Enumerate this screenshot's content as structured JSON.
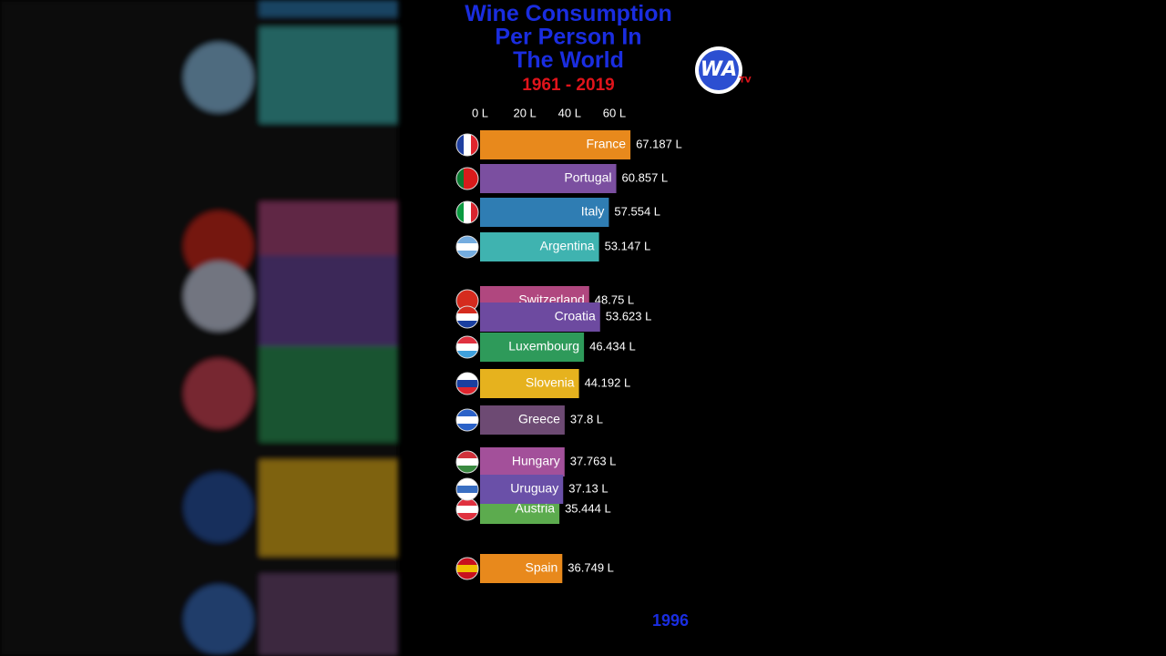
{
  "chart_data": {
    "type": "bar",
    "orientation": "horizontal",
    "title": "Wine Consumption Per Person In The World",
    "subtitle": "1961 - 2019",
    "annotation": "1996",
    "categories": [
      "France",
      "Portugal",
      "Italy",
      "Argentina",
      "Switzerland",
      "Croatia",
      "Luxembourg",
      "Slovenia",
      "Greece",
      "Hungary",
      "Austria",
      "Uruguay",
      "Spain"
    ],
    "values": [
      67.187,
      60.857,
      57.554,
      53.147,
      48.75,
      53.623,
      46.434,
      44.192,
      37.8,
      37.763,
      35.444,
      37.13,
      36.749
    ],
    "value_labels": [
      "67.187 L",
      "60.857 L",
      "57.554 L",
      "53.147 L",
      "48.75 L",
      "53.623 L",
      "46.434 L",
      "44.192 L",
      "37.8 L",
      "37.763 L",
      "35.444 L",
      "37.13 L",
      "36.749 L"
    ],
    "colors": [
      "#e8891c",
      "#7b4fa0",
      "#2f7db3",
      "#3fb3b0",
      "#b0477f",
      "#6d4aa0",
      "#2e9a5a",
      "#e6b21e",
      "#6d4a73",
      "#a3509a",
      "#5cab4e",
      "#6a50a8",
      "#e8891c"
    ],
    "xlim": [
      0,
      70
    ],
    "xticks": [
      {
        "value": 0,
        "label": "0 L"
      },
      {
        "value": 20,
        "label": "20 L"
      },
      {
        "value": 40,
        "label": "40 L"
      },
      {
        "value": 60,
        "label": "60 L"
      }
    ]
  },
  "logo": {
    "main": "WA",
    "sub": "TV"
  }
}
